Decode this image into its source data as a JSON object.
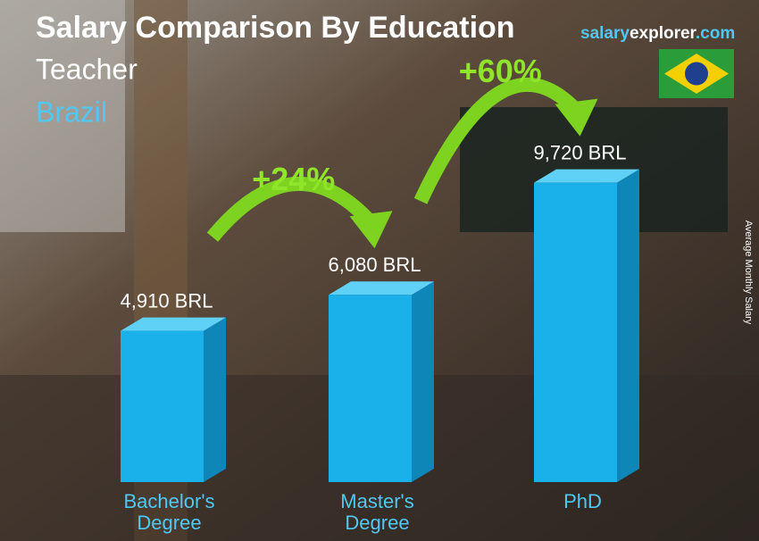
{
  "chart_data": {
    "type": "bar",
    "title": "Salary Comparison By Education",
    "subtitle": "Teacher",
    "location": "Brazil",
    "brand": [
      "salary",
      "explorer",
      ".com"
    ],
    "y_label": "Average Monthly Salary",
    "categories": [
      "Bachelor's Degree",
      "Master's Degree",
      "PhD"
    ],
    "values": [
      4910,
      6080,
      9720
    ],
    "value_labels": [
      "4,910 BRL",
      "6,080 BRL",
      "9,720 BRL"
    ],
    "annotations": [
      "+24%",
      "+60%"
    ],
    "color": "#1ab0ea"
  }
}
